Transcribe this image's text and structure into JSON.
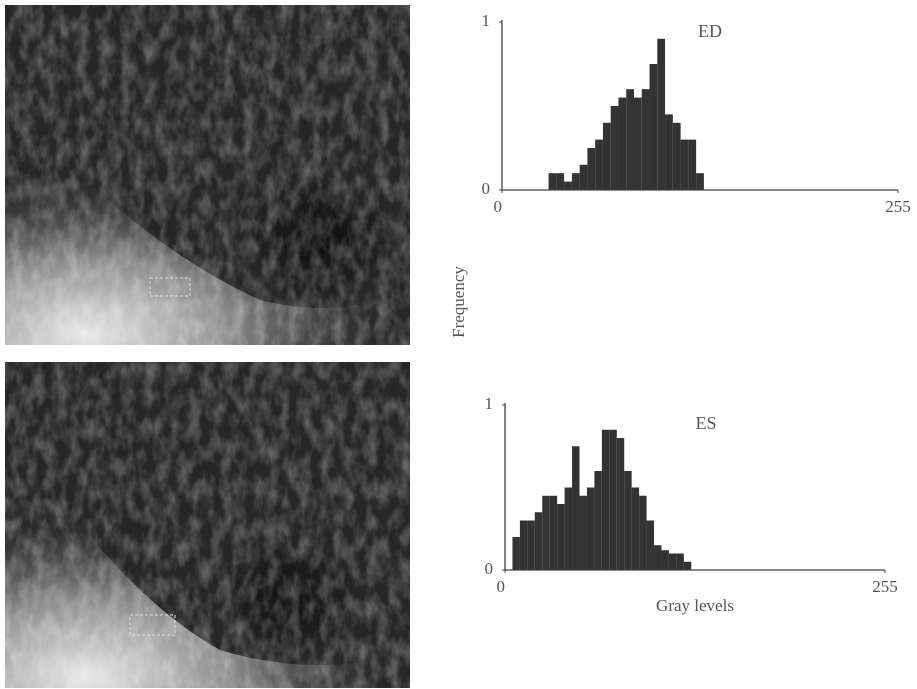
{
  "chart_data": [
    {
      "type": "histogram",
      "title": "ED",
      "ylabel": "Frequency",
      "color": "#333333",
      "bins": [
        0,
        5,
        10,
        15,
        20,
        25,
        30,
        35,
        40,
        45,
        50,
        55,
        60,
        65,
        70,
        75,
        80,
        85,
        90,
        95,
        100,
        105,
        110,
        115,
        120,
        125,
        130,
        135,
        140,
        145,
        150,
        155,
        160,
        165,
        170,
        175,
        180,
        185,
        190,
        195,
        200,
        205,
        210,
        215,
        220,
        225,
        230,
        235,
        240,
        245,
        250,
        255
      ],
      "values": [
        0,
        0,
        0,
        0,
        0,
        0,
        0.1,
        0.1,
        0.05,
        0.1,
        0.15,
        0.25,
        0.3,
        0.4,
        0.5,
        0.55,
        0.6,
        0.55,
        0.6,
        0.75,
        0.9,
        0.45,
        0.4,
        0.3,
        0.3,
        0.1,
        0,
        0,
        0,
        0,
        0,
        0,
        0,
        0,
        0,
        0,
        0,
        0,
        0,
        0,
        0,
        0,
        0,
        0,
        0,
        0,
        0,
        0,
        0,
        0,
        0
      ],
      "xlim": [
        0,
        255
      ],
      "xticks": [
        0,
        255
      ],
      "ylim": [
        0,
        1
      ],
      "yticks": [
        0,
        1
      ]
    },
    {
      "type": "histogram",
      "title": "ES",
      "xlabel": "Gray levels",
      "color": "#333333",
      "bins": [
        0,
        5,
        10,
        15,
        20,
        25,
        30,
        35,
        40,
        45,
        50,
        55,
        60,
        65,
        70,
        75,
        80,
        85,
        90,
        95,
        100,
        105,
        110,
        115,
        120,
        125,
        130,
        135,
        140,
        145,
        150,
        155,
        160,
        165,
        170,
        175,
        180,
        185,
        190,
        195,
        200,
        205,
        210,
        215,
        220,
        225,
        230,
        235,
        240,
        245,
        250,
        255
      ],
      "values": [
        0,
        0.2,
        0.3,
        0.3,
        0.35,
        0.45,
        0.45,
        0.4,
        0.5,
        0.75,
        0.45,
        0.5,
        0.6,
        0.85,
        0.85,
        0.8,
        0.6,
        0.5,
        0.45,
        0.3,
        0.15,
        0.12,
        0.1,
        0.1,
        0.05,
        0,
        0,
        0,
        0,
        0,
        0,
        0,
        0,
        0,
        0,
        0,
        0,
        0,
        0,
        0,
        0,
        0,
        0,
        0,
        0,
        0,
        0,
        0,
        0,
        0,
        0
      ],
      "xlim": [
        0,
        255
      ],
      "xticks": [
        0,
        255
      ],
      "ylim": [
        0,
        1
      ],
      "yticks": [
        0,
        1
      ]
    }
  ]
}
